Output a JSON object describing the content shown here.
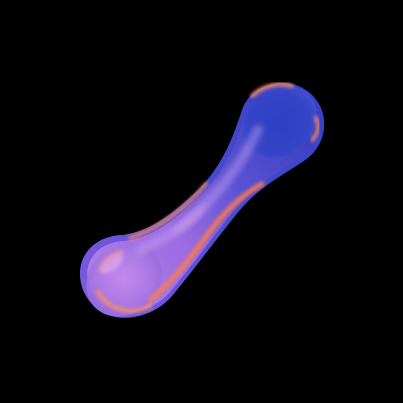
{
  "scene": {
    "subject": "glossy-bone-shaped-3d-object",
    "background_color": "#000000",
    "colors": {
      "deep_blue": "#2E3AB8",
      "royal_blue": "#3F4BD6",
      "violet": "#7A5BD8",
      "lavender": "#B07CE6",
      "pink": "#E58BD6",
      "coral": "#FF7A4A",
      "peach": "#FFB08A"
    }
  }
}
